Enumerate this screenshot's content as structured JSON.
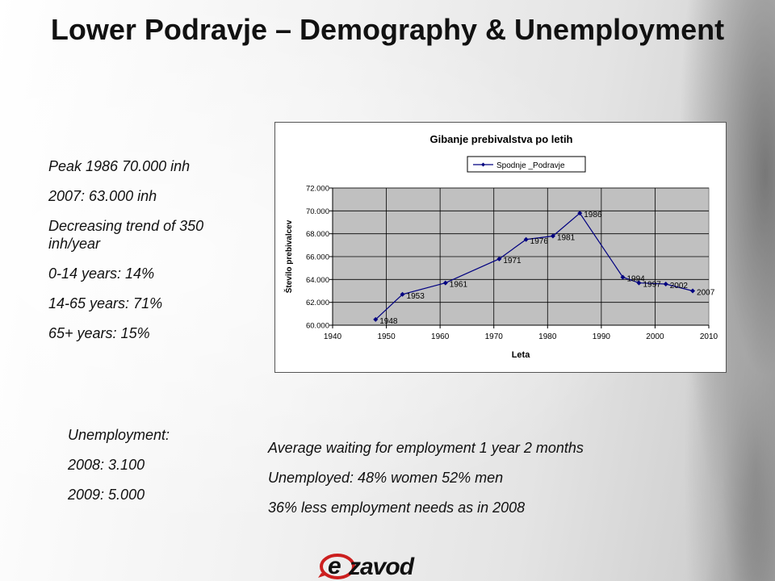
{
  "slide": {
    "title": "Lower Podravje – Demography & Unemployment",
    "bullets": [
      "Peak 1986 70.000 inh",
      "2007: 63.000 inh",
      "Decreasing trend of 350 inh/year",
      "0-14 years: 14%",
      "14-65 years: 71%",
      "65+ years: 15%"
    ],
    "unemployment": [
      "Unemployment:",
      "2008: 3.100",
      "2009: 5.000"
    ],
    "employment_notes": [
      "Average waiting for employment 1 year 2 months",
      "Unemployed: 48% women 52% men",
      "36% less employment needs as in 2008"
    ],
    "logo_text": "ezavod"
  },
  "colors": {
    "series": "#000080",
    "plot_bg": "#c0c0c0",
    "logo_red": "#cc1f1f"
  },
  "chart_data": {
    "type": "line",
    "title": "Gibanje prebivalstva po letih",
    "xlabel": "Leta",
    "ylabel": "Število prebivalcev",
    "xlim": [
      1940,
      2010
    ],
    "ylim": [
      60000,
      72000
    ],
    "x_ticks": [
      "1940",
      "1950",
      "1960",
      "1970",
      "1980",
      "1990",
      "2000",
      "2010"
    ],
    "y_ticks": [
      "60.000",
      "62.000",
      "64.000",
      "66.000",
      "68.000",
      "70.000",
      "72.000"
    ],
    "grid": true,
    "legend": "top-center",
    "series": [
      {
        "name": "Spodnje _Podravje",
        "x": [
          1948,
          1953,
          1961,
          1971,
          1976,
          1981,
          1986,
          1994,
          1997,
          2002,
          2007
        ],
        "values": [
          60500,
          62700,
          63700,
          65800,
          67500,
          67800,
          69800,
          64200,
          63700,
          63600,
          63000
        ],
        "point_labels": [
          "1948",
          "1953",
          "1961",
          "1971",
          "1976",
          "1981",
          "1986",
          "1994",
          "1997",
          "2002",
          "2007"
        ]
      }
    ]
  }
}
